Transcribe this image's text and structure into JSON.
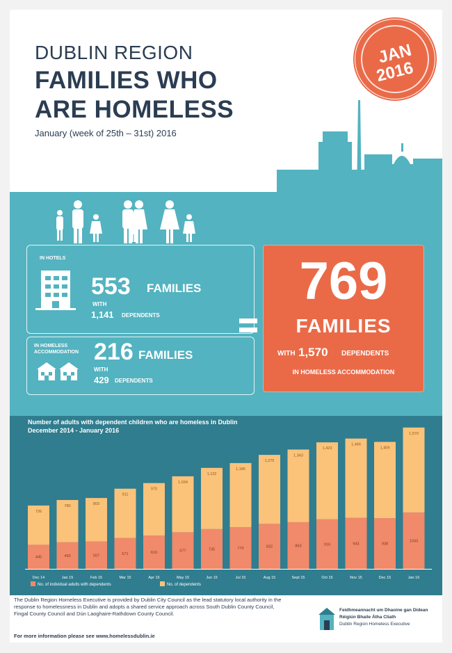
{
  "header": {
    "region": "DUBLIN REGION",
    "title_line1": "FAMILIES WHO",
    "title_line2": "ARE HOMELESS",
    "date": "January (week of 25th – 31st) 2016",
    "stamp_month": "JAN",
    "stamp_year": "2016"
  },
  "hotels": {
    "label_line1": "IN HOTELS",
    "families": "553",
    "families_label": "FAMILIES",
    "with_label": "WITH",
    "dependents": "1,141",
    "dependents_label": "DEPENDENTS",
    "icon": "hotel-building-icon"
  },
  "homeless_accommodation": {
    "label_line1": "IN HOMELESS",
    "label_line2": "ACCOMMODATION",
    "families": "216",
    "families_label": "FAMILIES",
    "with_label": "WITH",
    "dependents": "429",
    "dependents_label": "DEPENDENTS",
    "icon": "houses-icon"
  },
  "total": {
    "families": "769",
    "families_label": "FAMILIES",
    "with_label": "WITH",
    "dependents": "1,570",
    "dependents_label": "DEPENDENTS",
    "accommodation": "IN HOMELESS ACCOMMODATION"
  },
  "colors": {
    "teal": "#53b3c0",
    "dark_teal": "#2f7d8f",
    "orange": "#ea6a48",
    "bar_adults": "#f08a6a",
    "bar_dependents": "#fbc27a",
    "navy": "#2b3d52"
  },
  "chart_data": {
    "type": "bar",
    "stacked": true,
    "title": "Number of adults with dependent children who are homeless in Dublin",
    "subtitle": "December 2014 - January 2016",
    "categories": [
      "Dec 14",
      "Jan 15",
      "Feb 15",
      "Mar 15",
      "Apr 15",
      "May 15",
      "Jun 15",
      "Jul 15",
      "Aug 15",
      "Sept 15",
      "Oct 15",
      "Nov 15",
      "Dec 15",
      "Jan 16"
    ],
    "series": [
      {
        "name": "No. of individual adults with dependents",
        "color": "#f08a6a",
        "values": [
          445,
          493,
          507,
          571,
          616,
          677,
          735,
          770,
          832,
          863,
          916,
          943,
          938,
          1043
        ]
      },
      {
        "name": "No. of dependents",
        "color": "#fbc27a",
        "values": [
          726,
          780,
          803,
          911,
          970,
          1034,
          1132,
          1186,
          1275,
          1343,
          1423,
          1466,
          1409,
          1570
        ]
      }
    ],
    "ylim": [
      0,
      2700
    ],
    "grid": false,
    "legend": "bottom-left"
  },
  "footer": {
    "text": "The Dublin Region Homeless Executive is provided by Dublin City Council as the lead statutory local authority in the response to homelessness in Dublin and adopts a shared service approach across South Dublin County Council, Fingal County Council and Dún Laoghaire-Rathdown County Council.",
    "link": "For more information please see www.homelessdublin.ie",
    "logo_line1": "Feidhmeannacht um Dhaoine gan Dídean",
    "logo_line2": "Réigiún Bhaile Átha Cliath",
    "logo_line3": "Dublin Region Homeless Executive",
    "logo_icon": "drhe-logo-icon"
  }
}
